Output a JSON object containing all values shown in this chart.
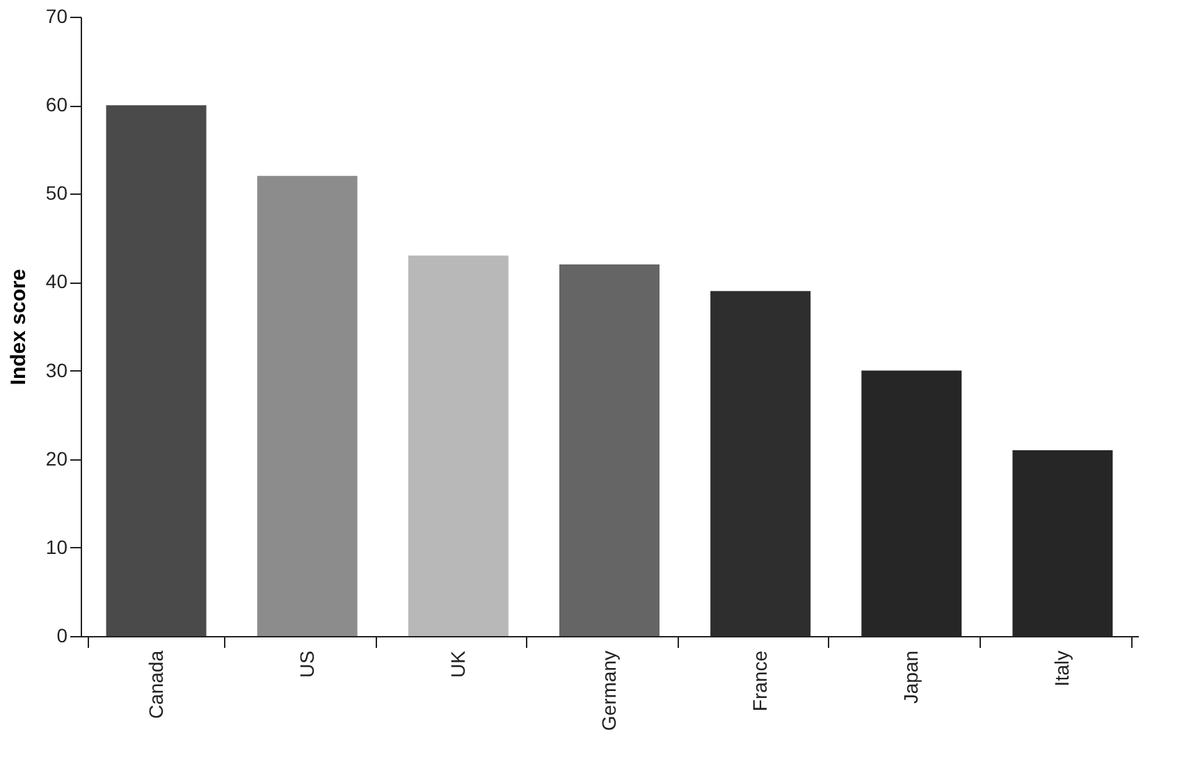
{
  "chart_data": {
    "type": "bar",
    "ylabel": "Index score",
    "categories": [
      "Canada",
      "US",
      "UK",
      "Germany",
      "France",
      "Japan",
      "Italy"
    ],
    "values": [
      60,
      52,
      43,
      42,
      39,
      30,
      21
    ],
    "colors": [
      "#4a4a4a",
      "#8c8c8c",
      "#b8b8b8",
      "#656565",
      "#2e2e2e",
      "#262626",
      "#262626"
    ],
    "ylim": [
      0,
      70
    ],
    "yticks": [
      0,
      10,
      20,
      30,
      40,
      50,
      60,
      70
    ],
    "grid": false
  }
}
